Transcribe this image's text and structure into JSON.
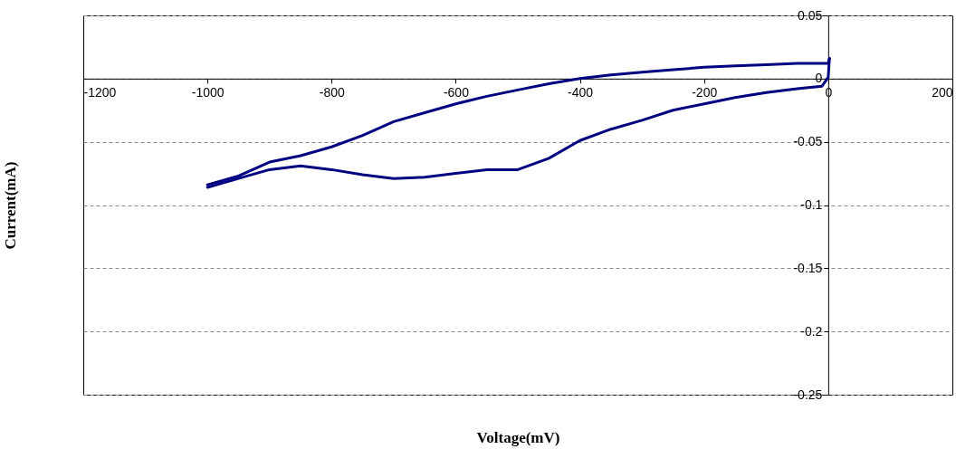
{
  "chart_data": {
    "type": "line",
    "xlabel": "Voltage(mV)",
    "ylabel": "Current(mA)",
    "xlim": [
      -1200,
      200
    ],
    "ylim": [
      -0.25,
      0.05
    ],
    "xticks": [
      -1200,
      -1000,
      -800,
      -600,
      -400,
      -200,
      0,
      200
    ],
    "yticks": [
      -0.25,
      -0.2,
      -0.15,
      -0.1,
      -0.05,
      0,
      0.05
    ],
    "grid": "y",
    "marker": "none",
    "line_style": "solid",
    "series": [
      {
        "color": "#000080",
        "x": [
          2,
          0,
          -50,
          -100,
          -150,
          -200,
          -250,
          -300,
          -350,
          -400,
          -450,
          -500,
          -550,
          -600,
          -650,
          -700,
          -750,
          -800,
          -850,
          -900,
          -950,
          -1000
        ],
        "values": [
          0.016,
          0.012,
          0.012,
          0.011,
          0.01,
          0.009,
          0.007,
          0.005,
          0.003,
          0,
          -0.004,
          -0.009,
          -0.014,
          -0.02,
          -0.027,
          -0.034,
          -0.045,
          -0.054,
          -0.061,
          -0.066,
          -0.077,
          -0.084
        ]
      },
      {
        "color": "#000080",
        "x": [
          -1000,
          -950,
          -900,
          -850,
          -800,
          -750,
          -700,
          -650,
          -600,
          -550,
          -500,
          -450,
          -400,
          -350,
          -300,
          -250,
          -200,
          -150,
          -100,
          -50,
          -10,
          0,
          2
        ],
        "values": [
          -0.086,
          -0.079,
          -0.072,
          -0.069,
          -0.072,
          -0.076,
          -0.079,
          -0.078,
          -0.075,
          -0.072,
          -0.072,
          -0.063,
          -0.049,
          -0.04,
          -0.033,
          -0.025,
          -0.02,
          -0.015,
          -0.011,
          -0.008,
          -0.006,
          0.001,
          0.016
        ]
      }
    ]
  }
}
